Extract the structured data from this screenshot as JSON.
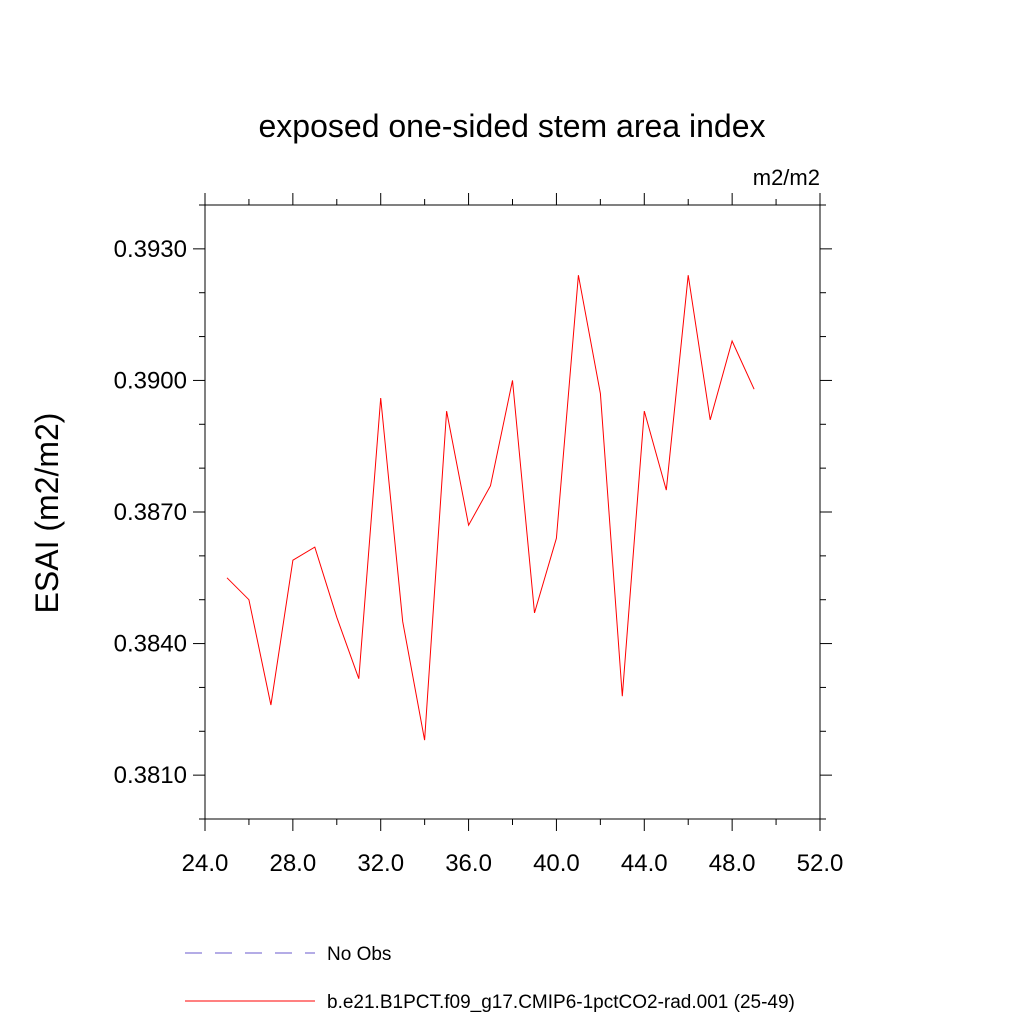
{
  "chart_data": {
    "type": "line",
    "title": "exposed one-sided stem area index",
    "units": "m2/m2",
    "ylabel": "ESAI  (m2/m2)",
    "xlabel": "",
    "xlim": [
      24,
      52
    ],
    "ylim": [
      0.38,
      0.394
    ],
    "xticks": [
      {
        "value": 24,
        "label": "24.0"
      },
      {
        "value": 28,
        "label": "28.0"
      },
      {
        "value": 32,
        "label": "32.0"
      },
      {
        "value": 36,
        "label": "36.0"
      },
      {
        "value": 40,
        "label": "40.0"
      },
      {
        "value": 44,
        "label": "44.0"
      },
      {
        "value": 48,
        "label": "48.0"
      },
      {
        "value": 52,
        "label": "52.0"
      }
    ],
    "yticks": [
      {
        "value": 0.381,
        "label": "0.3810"
      },
      {
        "value": 0.384,
        "label": "0.3840"
      },
      {
        "value": 0.387,
        "label": "0.3870"
      },
      {
        "value": 0.39,
        "label": "0.3900"
      },
      {
        "value": 0.393,
        "label": "0.3930"
      }
    ],
    "series": [
      {
        "name": "b.e21.B1PCT.f09_g17.CMIP6-1pctCO2-rad.001 (25-49)",
        "color": "#ff0000",
        "x": [
          25,
          26,
          27,
          28,
          29,
          30,
          31,
          32,
          33,
          34,
          35,
          36,
          37,
          38,
          39,
          40,
          41,
          42,
          43,
          44,
          45,
          46,
          47,
          48,
          49
        ],
        "y": [
          0.3855,
          0.385,
          0.3826,
          0.3859,
          0.3862,
          0.3846,
          0.3832,
          0.3896,
          0.3845,
          0.3818,
          0.3893,
          0.3867,
          0.3876,
          0.39,
          0.3847,
          0.3864,
          0.3924,
          0.3897,
          0.3828,
          0.3893,
          0.3875,
          0.3924,
          0.3891,
          0.3909,
          0.3898
        ]
      }
    ],
    "legend": [
      {
        "label": "No Obs",
        "color": "#6a5acd",
        "style": "dashed"
      },
      {
        "label": "b.e21.B1PCT.f09_g17.CMIP6-1pctCO2-rad.001 (25-49)",
        "color": "#ff0000",
        "style": "solid"
      }
    ],
    "grid": false,
    "legend_position": "bottom"
  }
}
